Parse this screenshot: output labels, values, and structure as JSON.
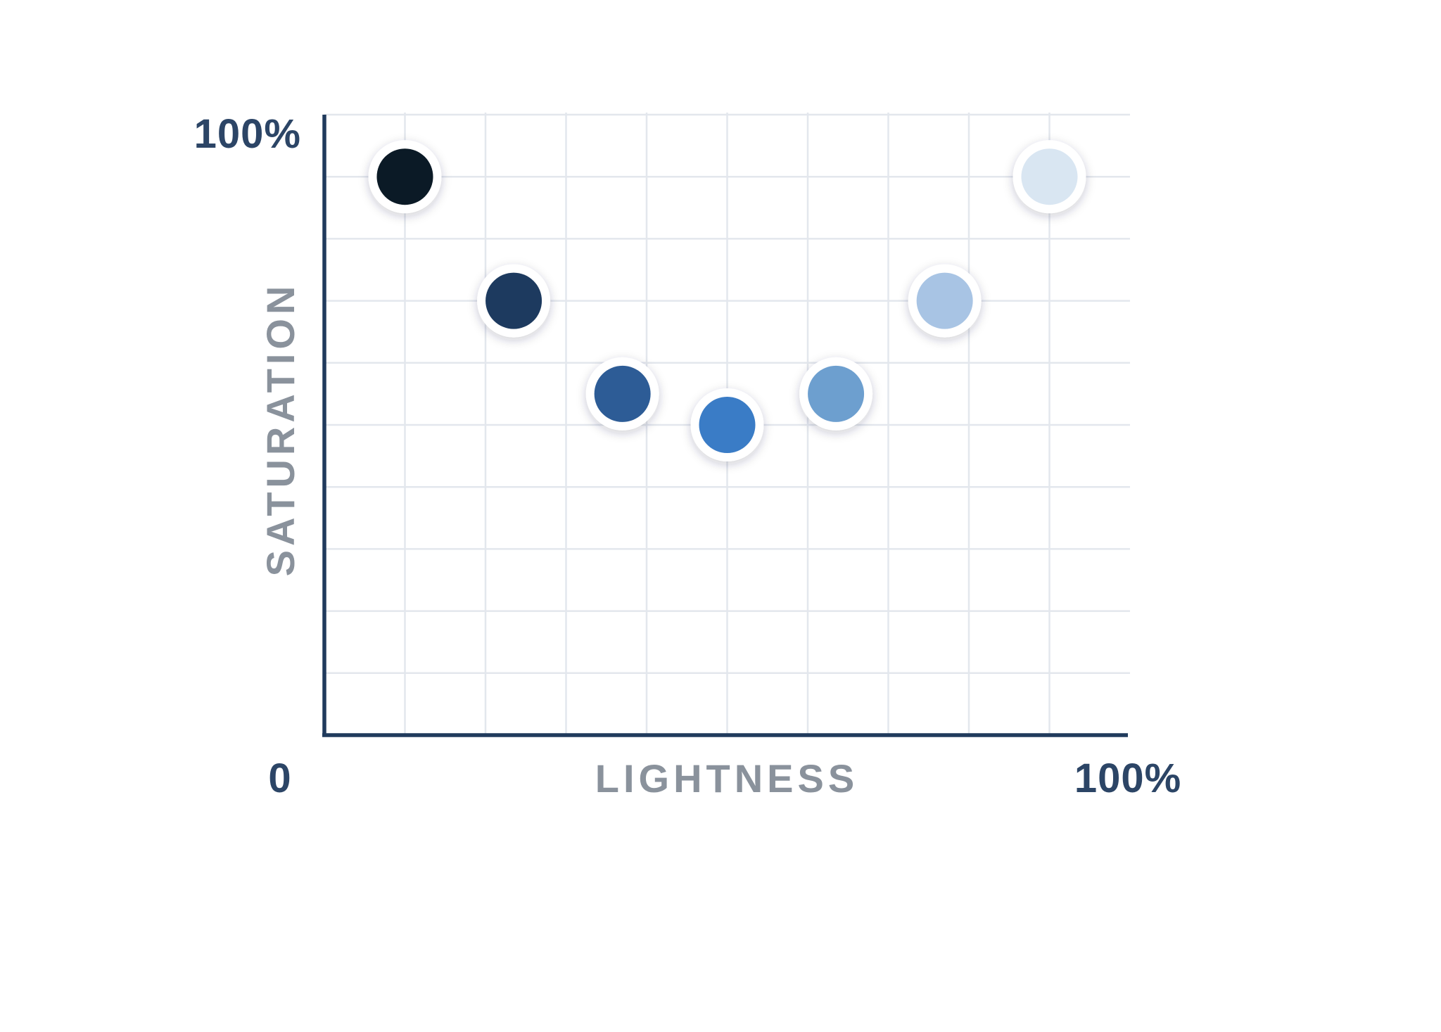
{
  "chart_data": {
    "type": "scatter",
    "title": "",
    "xlabel": "LIGHTNESS",
    "ylabel": "SATURATION",
    "xlim": [
      0,
      100
    ],
    "ylim": [
      0,
      100
    ],
    "grid": true,
    "x_tick_labels": {
      "min": "0",
      "max": "100%"
    },
    "y_tick_labels": {
      "max": "100%"
    },
    "points": [
      {
        "x": 10,
        "y": 90,
        "color": "#0b1a26"
      },
      {
        "x": 23.5,
        "y": 70,
        "color": "#1d3a5f"
      },
      {
        "x": 37,
        "y": 55,
        "color": "#2d5c96"
      },
      {
        "x": 50,
        "y": 50,
        "color": "#3a7cc6"
      },
      {
        "x": 63.5,
        "y": 55,
        "color": "#6d9fcf"
      },
      {
        "x": 77,
        "y": 70,
        "color": "#a8c4e4"
      },
      {
        "x": 90,
        "y": 90,
        "color": "#d9e6f2"
      }
    ]
  }
}
